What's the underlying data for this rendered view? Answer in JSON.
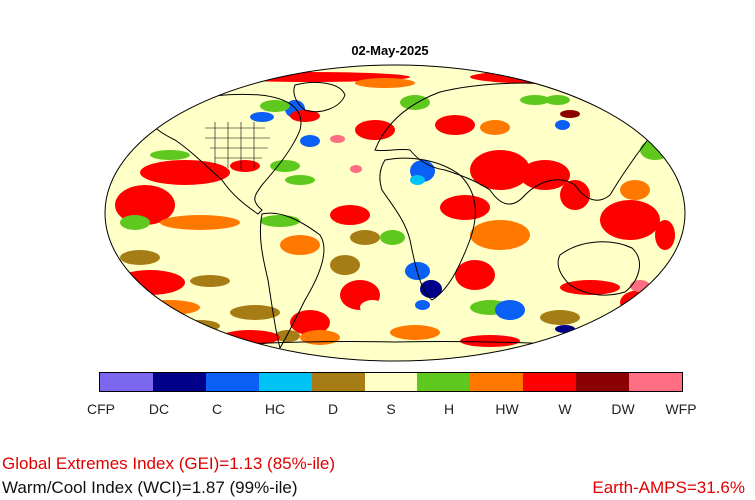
{
  "title": "02-May-2025",
  "legend": {
    "items": [
      {
        "code": "CFP",
        "color": "#7b68ee"
      },
      {
        "code": "DC",
        "color": "#00008b"
      },
      {
        "code": "C",
        "color": "#0a5ff5"
      },
      {
        "code": "HC",
        "color": "#00c3f5"
      },
      {
        "code": "D",
        "color": "#a67c14"
      },
      {
        "code": "S",
        "color": "#ffffc8"
      },
      {
        "code": "H",
        "color": "#5fc81e"
      },
      {
        "code": "HW",
        "color": "#ff7800"
      },
      {
        "code": "W",
        "color": "#ff0000"
      },
      {
        "code": "DW",
        "color": "#8b0000"
      },
      {
        "code": "WFP",
        "color": "#ff6e82"
      }
    ]
  },
  "indices": {
    "gei": "Global Extremes Index (GEI)=1.13 (85%-ile)",
    "wci": "Warm/Cool Index (WCI)=1.87 (99%-ile)",
    "amps": "Earth-AMPS=31.6%"
  },
  "colors": {
    "accent_red": "#e00000",
    "coast": "#000000"
  }
}
